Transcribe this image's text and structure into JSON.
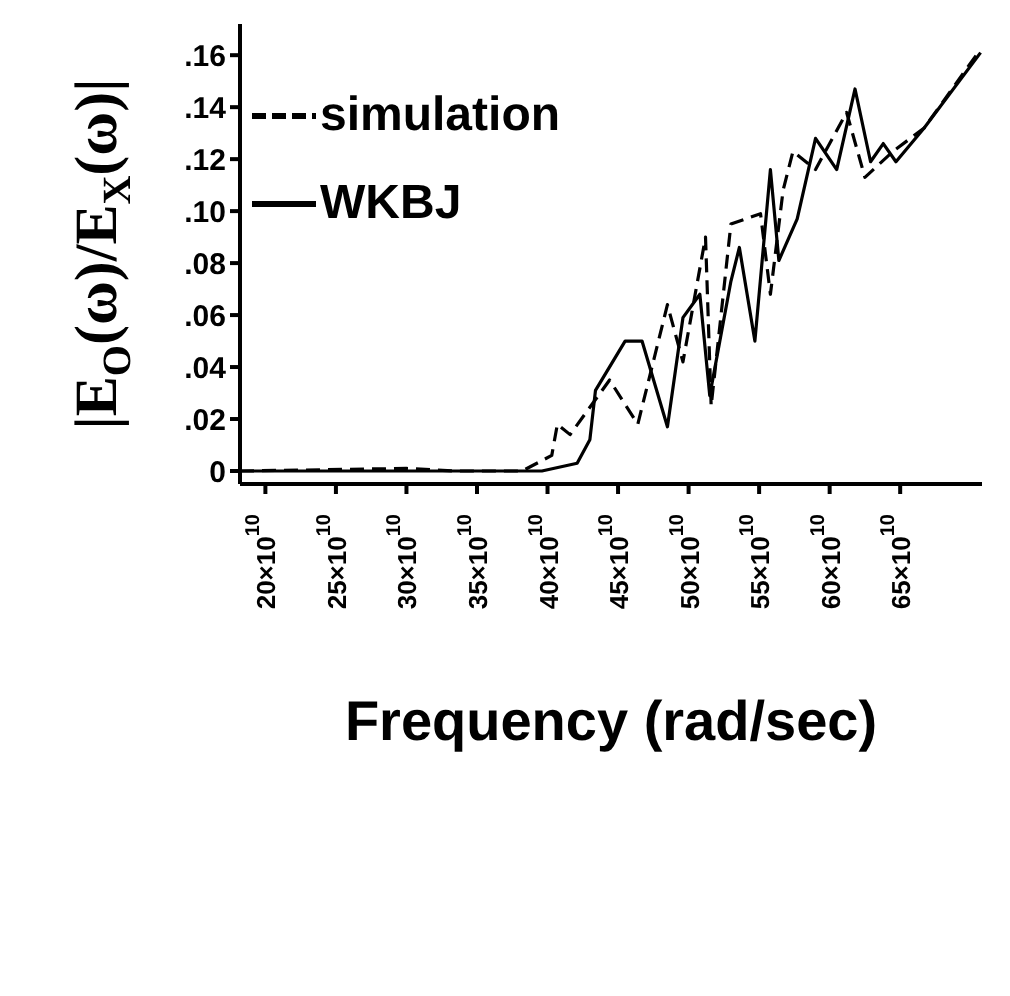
{
  "chart_data": {
    "type": "line",
    "xlabel": "Frequency  (rad/sec)",
    "ylabel": "|E$_{O}$(ω)/E$_{X}$(ω)|",
    "xlim": [
      182000000000.0,
      708000000000.0
    ],
    "xticks": [
      {
        "value": 200000000000.0,
        "label": "20×10$^{10}$"
      },
      {
        "value": 250000000000.0,
        "label": "25×10$^{10}$"
      },
      {
        "value": 300000000000.0,
        "label": "30×10$^{10}$"
      },
      {
        "value": 350000000000.0,
        "label": "35×10$^{10}$"
      },
      {
        "value": 400000000000.0,
        "label": "40×10$^{10}$"
      },
      {
        "value": 450000000000.0,
        "label": "45×10$^{10}$"
      },
      {
        "value": 500000000000.0,
        "label": "50×10$^{10}$"
      },
      {
        "value": 550000000000.0,
        "label": "55×10$^{10}$"
      },
      {
        "value": 600000000000.0,
        "label": "60×10$^{10}$"
      },
      {
        "value": 650000000000.0,
        "label": "65×10$^{10}$"
      }
    ],
    "ylim": [
      -0.005,
      0.172
    ],
    "yticks": [
      0,
      {
        "value": 0.02,
        "label": ".02"
      },
      {
        "value": 0.04,
        "label": ".04"
      },
      {
        "value": 0.06,
        "label": ".06"
      },
      {
        "value": 0.08,
        "label": ".08"
      },
      {
        "value": 0.1,
        "label": ".10"
      },
      {
        "value": 0.12,
        "label": ".12"
      },
      {
        "value": 0.14,
        "label": ".14"
      },
      {
        "value": 0.16,
        "label": ".16"
      }
    ],
    "legend": "top left",
    "grid": false,
    "marker": "none",
    "series": [
      {
        "name": "simulation",
        "color": "#000000",
        "line_style": "dashed",
        "x": [
          182000000000.0,
          300000000000.0,
          334000000000.0,
          382000000000.0,
          403000000000.0,
          407000000000.0,
          416000000000.0,
          444000000000.0,
          464000000000.0,
          485000000000.0,
          496000000000.0,
          512000000000.0,
          516000000000.0,
          530000000000.0,
          551000000000.0,
          558000000000.0,
          567000000000.0,
          574000000000.0,
          590000000000.0,
          612000000000.0,
          625000000000.0,
          645000000000.0,
          667000000000.0,
          704000000000.0
        ],
        "values": [
          0,
          0.001,
          0,
          0,
          0.006,
          0.018,
          0.014,
          0.035,
          0.018,
          0.064,
          0.042,
          0.09,
          0.025,
          0.095,
          0.099,
          0.068,
          0.108,
          0.123,
          0.116,
          0.138,
          0.113,
          0.123,
          0.132,
          0.16
        ]
      },
      {
        "name": "WKBJ",
        "color": "#000000",
        "line_style": "solid",
        "x": [
          182000000000.0,
          396000000000.0,
          421000000000.0,
          430000000000.0,
          434000000000.0,
          455000000000.0,
          467000000000.0,
          485000000000.0,
          496000000000.0,
          508000000000.0,
          515000000000.0,
          530000000000.0,
          536000000000.0,
          547000000000.0,
          558000000000.0,
          564000000000.0,
          577000000000.0,
          590000000000.0,
          605000000000.0,
          618000000000.0,
          629000000000.0,
          638000000000.0,
          647000000000.0,
          667000000000.0,
          707000000000.0
        ],
        "values": [
          0,
          0,
          0.003,
          0.012,
          0.031,
          0.05,
          0.05,
          0.017,
          0.059,
          0.068,
          0.029,
          0.073,
          0.086,
          0.05,
          0.116,
          0.081,
          0.097,
          0.128,
          0.116,
          0.147,
          0.119,
          0.126,
          0.119,
          0.132,
          0.161
        ]
      }
    ]
  }
}
